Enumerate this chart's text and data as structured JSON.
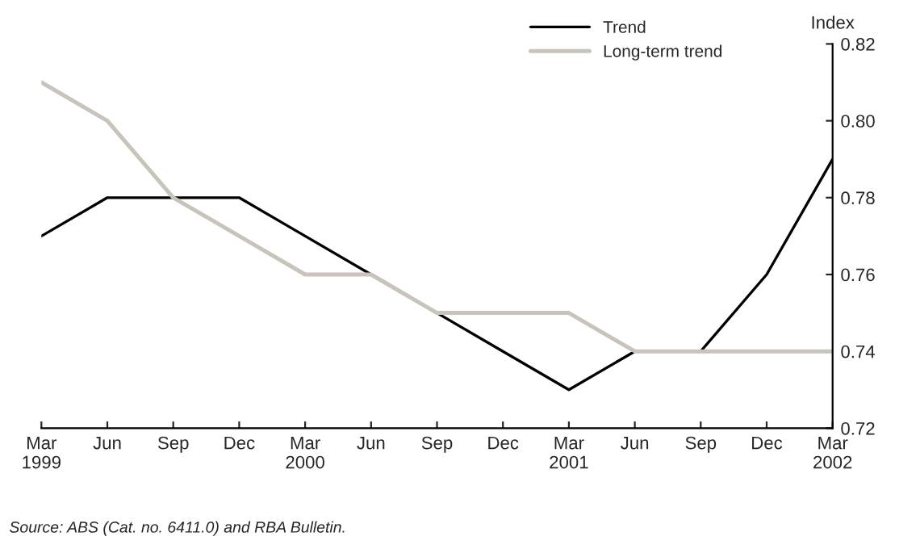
{
  "chart_data": {
    "type": "line",
    "ylabel": "Index",
    "categories": [
      "Mar\n1999",
      "Jun",
      "Sep",
      "Dec",
      "Mar\n2000",
      "Jun",
      "Sep",
      "Dec",
      "Mar\n2001",
      "Jun",
      "Sep",
      "Dec",
      "Mar\n2002"
    ],
    "series": [
      {
        "name": "Trend",
        "color": "#000000",
        "values": [
          0.77,
          0.78,
          0.78,
          0.78,
          0.77,
          0.76,
          0.75,
          0.74,
          0.73,
          0.74,
          0.74,
          0.76,
          0.79
        ]
      },
      {
        "name": "Long-term trend",
        "color": "#c8c4bc",
        "values": [
          0.81,
          0.8,
          0.78,
          0.77,
          0.76,
          0.76,
          0.75,
          0.75,
          0.75,
          0.74,
          0.74,
          0.74,
          0.74
        ]
      }
    ],
    "ylim": [
      0.72,
      0.82
    ],
    "yticks": [
      0.72,
      0.74,
      0.76,
      0.78,
      {
        "value": 0.8,
        "label": "0.80"
      },
      0.82
    ],
    "grid": false,
    "legend": "top right",
    "marker": "none",
    "line_style": "solid",
    "annotations": [
      "Source: ABS (Cat. no. 6411.0) and RBA Bulletin."
    ]
  }
}
